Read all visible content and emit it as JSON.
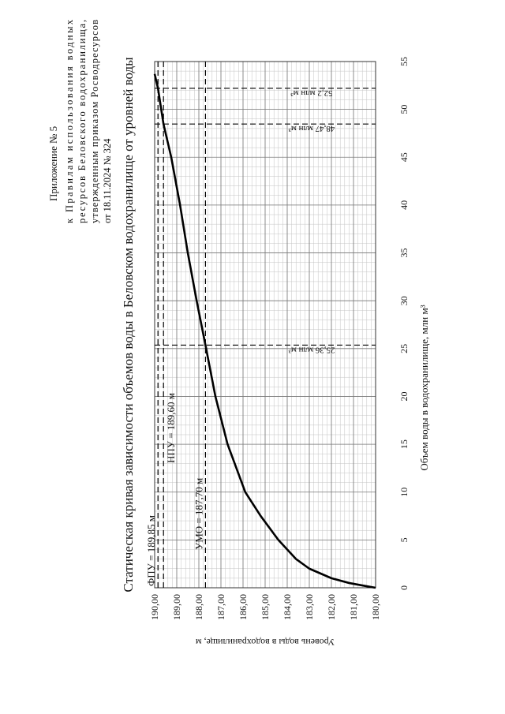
{
  "header": {
    "appendix": "Приложение № 5",
    "lines": [
      "к Правилам использования водных",
      "ресурсов Беловского водохранилища,",
      "утвержденным приказом Росводресурсов",
      "от 18.11.2024 № 324"
    ]
  },
  "chart_data": {
    "type": "line",
    "title": "Статическая кривая зависимости объемов воды в Беловском водохранилище от уровней воды",
    "x_label": "Объем воды в водохранилище, млн м³",
    "y_label": "Уровень воды в водохранилище, м",
    "x": [
      0,
      0.2,
      0.5,
      1,
      2,
      3,
      5,
      7.5,
      10,
      15,
      20,
      25.36,
      30,
      35,
      40,
      45,
      48.47,
      52.2,
      53.7
    ],
    "series": [
      {
        "name": "Уровень воды",
        "color": "#000000",
        "values": [
          180,
          180.5,
          181.2,
          182,
          183,
          183.6,
          184.4,
          185.2,
          185.9,
          186.7,
          187.25,
          187.7,
          188.1,
          188.5,
          188.85,
          189.25,
          189.6,
          189.85,
          190
        ]
      }
    ],
    "xlim": [
      0,
      55
    ],
    "xticks": [
      0,
      5,
      10,
      15,
      20,
      25,
      30,
      35,
      40,
      45,
      50,
      55
    ],
    "ylim": [
      180,
      190
    ],
    "yticks": [
      {
        "value": 180,
        "label": "180,00"
      },
      {
        "value": 181,
        "label": "181,00"
      },
      {
        "value": 182,
        "label": "182,00"
      },
      {
        "value": 183,
        "label": "183,00"
      },
      {
        "value": 184,
        "label": "184,00"
      },
      {
        "value": 185,
        "label": "185,00"
      },
      {
        "value": 186,
        "label": "186,00"
      },
      {
        "value": 187,
        "label": "187,00"
      },
      {
        "value": 188,
        "label": "188,00"
      },
      {
        "value": 189,
        "label": "189,00"
      },
      {
        "value": 190,
        "label": "190,00"
      }
    ],
    "grid": true,
    "minor_grid": true,
    "level_marks": [
      {
        "text": "ФПУ = 189,85 м",
        "y": 189.85
      },
      {
        "text": "НПУ = 189,60 м",
        "y": 189.6
      },
      {
        "text": "УМО = 187,70 м",
        "y": 187.7
      }
    ],
    "volume_marks": [
      {
        "text": "25,36 млн м³",
        "x": 25.36
      },
      {
        "text": "48,47 млн м³",
        "x": 48.47
      },
      {
        "text": "52,2 млн м³",
        "x": 52.2
      }
    ]
  }
}
